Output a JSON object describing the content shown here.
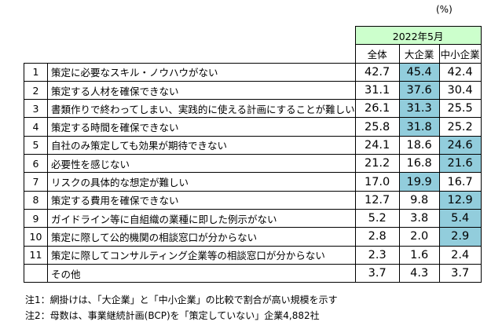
{
  "unit_label": "(%)",
  "highlight_color": "#92cddc",
  "period_header_color": "#ccffcc",
  "period": "2022年5月",
  "columns": [
    "全体",
    "大企業",
    "中小企業"
  ],
  "rows": [
    {
      "no": "1",
      "label": "策定に必要なスキル・ノウハウがない",
      "values": [
        "42.7",
        "45.4",
        "42.4"
      ],
      "highlight": 1
    },
    {
      "no": "2",
      "label": "策定する人材を確保できない",
      "values": [
        "31.1",
        "37.6",
        "30.4"
      ],
      "highlight": 1
    },
    {
      "no": "3",
      "label": "書類作りで終わってしまい、実践的に使える計画にすることが難しい",
      "values": [
        "26.1",
        "31.3",
        "25.5"
      ],
      "highlight": 1
    },
    {
      "no": "4",
      "label": "策定する時間を確保できない",
      "values": [
        "25.8",
        "31.8",
        "25.2"
      ],
      "highlight": 1
    },
    {
      "no": "5",
      "label": "自社のみ策定しても効果が期待できない",
      "values": [
        "24.1",
        "18.6",
        "24.6"
      ],
      "highlight": 2
    },
    {
      "no": "6",
      "label": "必要性を感じない",
      "values": [
        "21.2",
        "16.8",
        "21.6"
      ],
      "highlight": 2
    },
    {
      "no": "7",
      "label": "リスクの具体的な想定が難しい",
      "values": [
        "17.0",
        "19.9",
        "16.7"
      ],
      "highlight": 1
    },
    {
      "no": "8",
      "label": "策定する費用を確保できない",
      "values": [
        "12.7",
        "9.8",
        "12.9"
      ],
      "highlight": 2
    },
    {
      "no": "9",
      "label": "ガイドライン等に自組織の業種に即した例示がない",
      "values": [
        "5.2",
        "3.8",
        "5.4"
      ],
      "highlight": 2
    },
    {
      "no": "10",
      "label": "策定に際して公的機関の相談窓口が分からない",
      "values": [
        "2.8",
        "2.0",
        "2.9"
      ],
      "highlight": 2
    },
    {
      "no": "11",
      "label": "策定に際してコンサルティング企業等の相談窓口が分からない",
      "values": [
        "2.3",
        "1.6",
        "2.4"
      ],
      "highlight": -1
    },
    {
      "no": "",
      "label": "その他",
      "values": [
        "3.7",
        "4.3",
        "3.7"
      ],
      "highlight": -1
    }
  ],
  "notes": [
    "注1：網掛けは、「大企業」と「中小企業」の比較で割合が高い規模を示す",
    "注2：母数は、事業継続計画(BCP)を「策定していない」企業4,882社"
  ],
  "chart_data": {
    "type": "table",
    "title": "",
    "period": "2022年5月",
    "unit": "(%)",
    "columns": [
      "全体",
      "大企業",
      "中小企業"
    ],
    "categories": [
      "策定に必要なスキル・ノウハウがない",
      "策定する人材を確保できない",
      "書類作りで終わってしまい、実践的に使える計画にすることが難しい",
      "策定する時間を確保できない",
      "自社のみ策定しても効果が期待できない",
      "必要性を感じない",
      "リスクの具体的な想定が難しい",
      "策定する費用を確保できない",
      "ガイドライン等に自組織の業種に即した例示がない",
      "策定に際して公的機関の相談窓口が分からない",
      "策定に際してコンサルティング企業等の相談窓口が分からない",
      "その他"
    ],
    "series": [
      {
        "name": "全体",
        "values": [
          42.7,
          31.1,
          26.1,
          25.8,
          24.1,
          21.2,
          17.0,
          12.7,
          5.2,
          2.8,
          2.3,
          3.7
        ]
      },
      {
        "name": "大企業",
        "values": [
          45.4,
          37.6,
          31.3,
          31.8,
          18.6,
          16.8,
          19.9,
          9.8,
          3.8,
          2.0,
          1.6,
          4.3
        ]
      },
      {
        "name": "中小企業",
        "values": [
          42.4,
          30.4,
          25.5,
          25.2,
          24.6,
          21.6,
          16.7,
          12.9,
          5.4,
          2.9,
          2.4,
          3.7
        ]
      }
    ]
  }
}
